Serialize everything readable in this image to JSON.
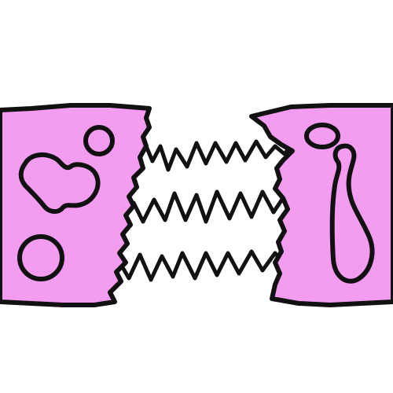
{
  "colors": {
    "background": "#ffffff",
    "piece_fill": "#f49cf0",
    "ink": "#111111"
  },
  "illustration": {
    "pieces": [
      "left-piece",
      "right-piece"
    ],
    "stretched_strands": 3,
    "spots": {
      "left": [
        "blob-spot",
        "small-circle-spot",
        "large-circle-spot"
      ],
      "right": [
        "oval-spot",
        "elongated-loop-spot"
      ]
    }
  }
}
